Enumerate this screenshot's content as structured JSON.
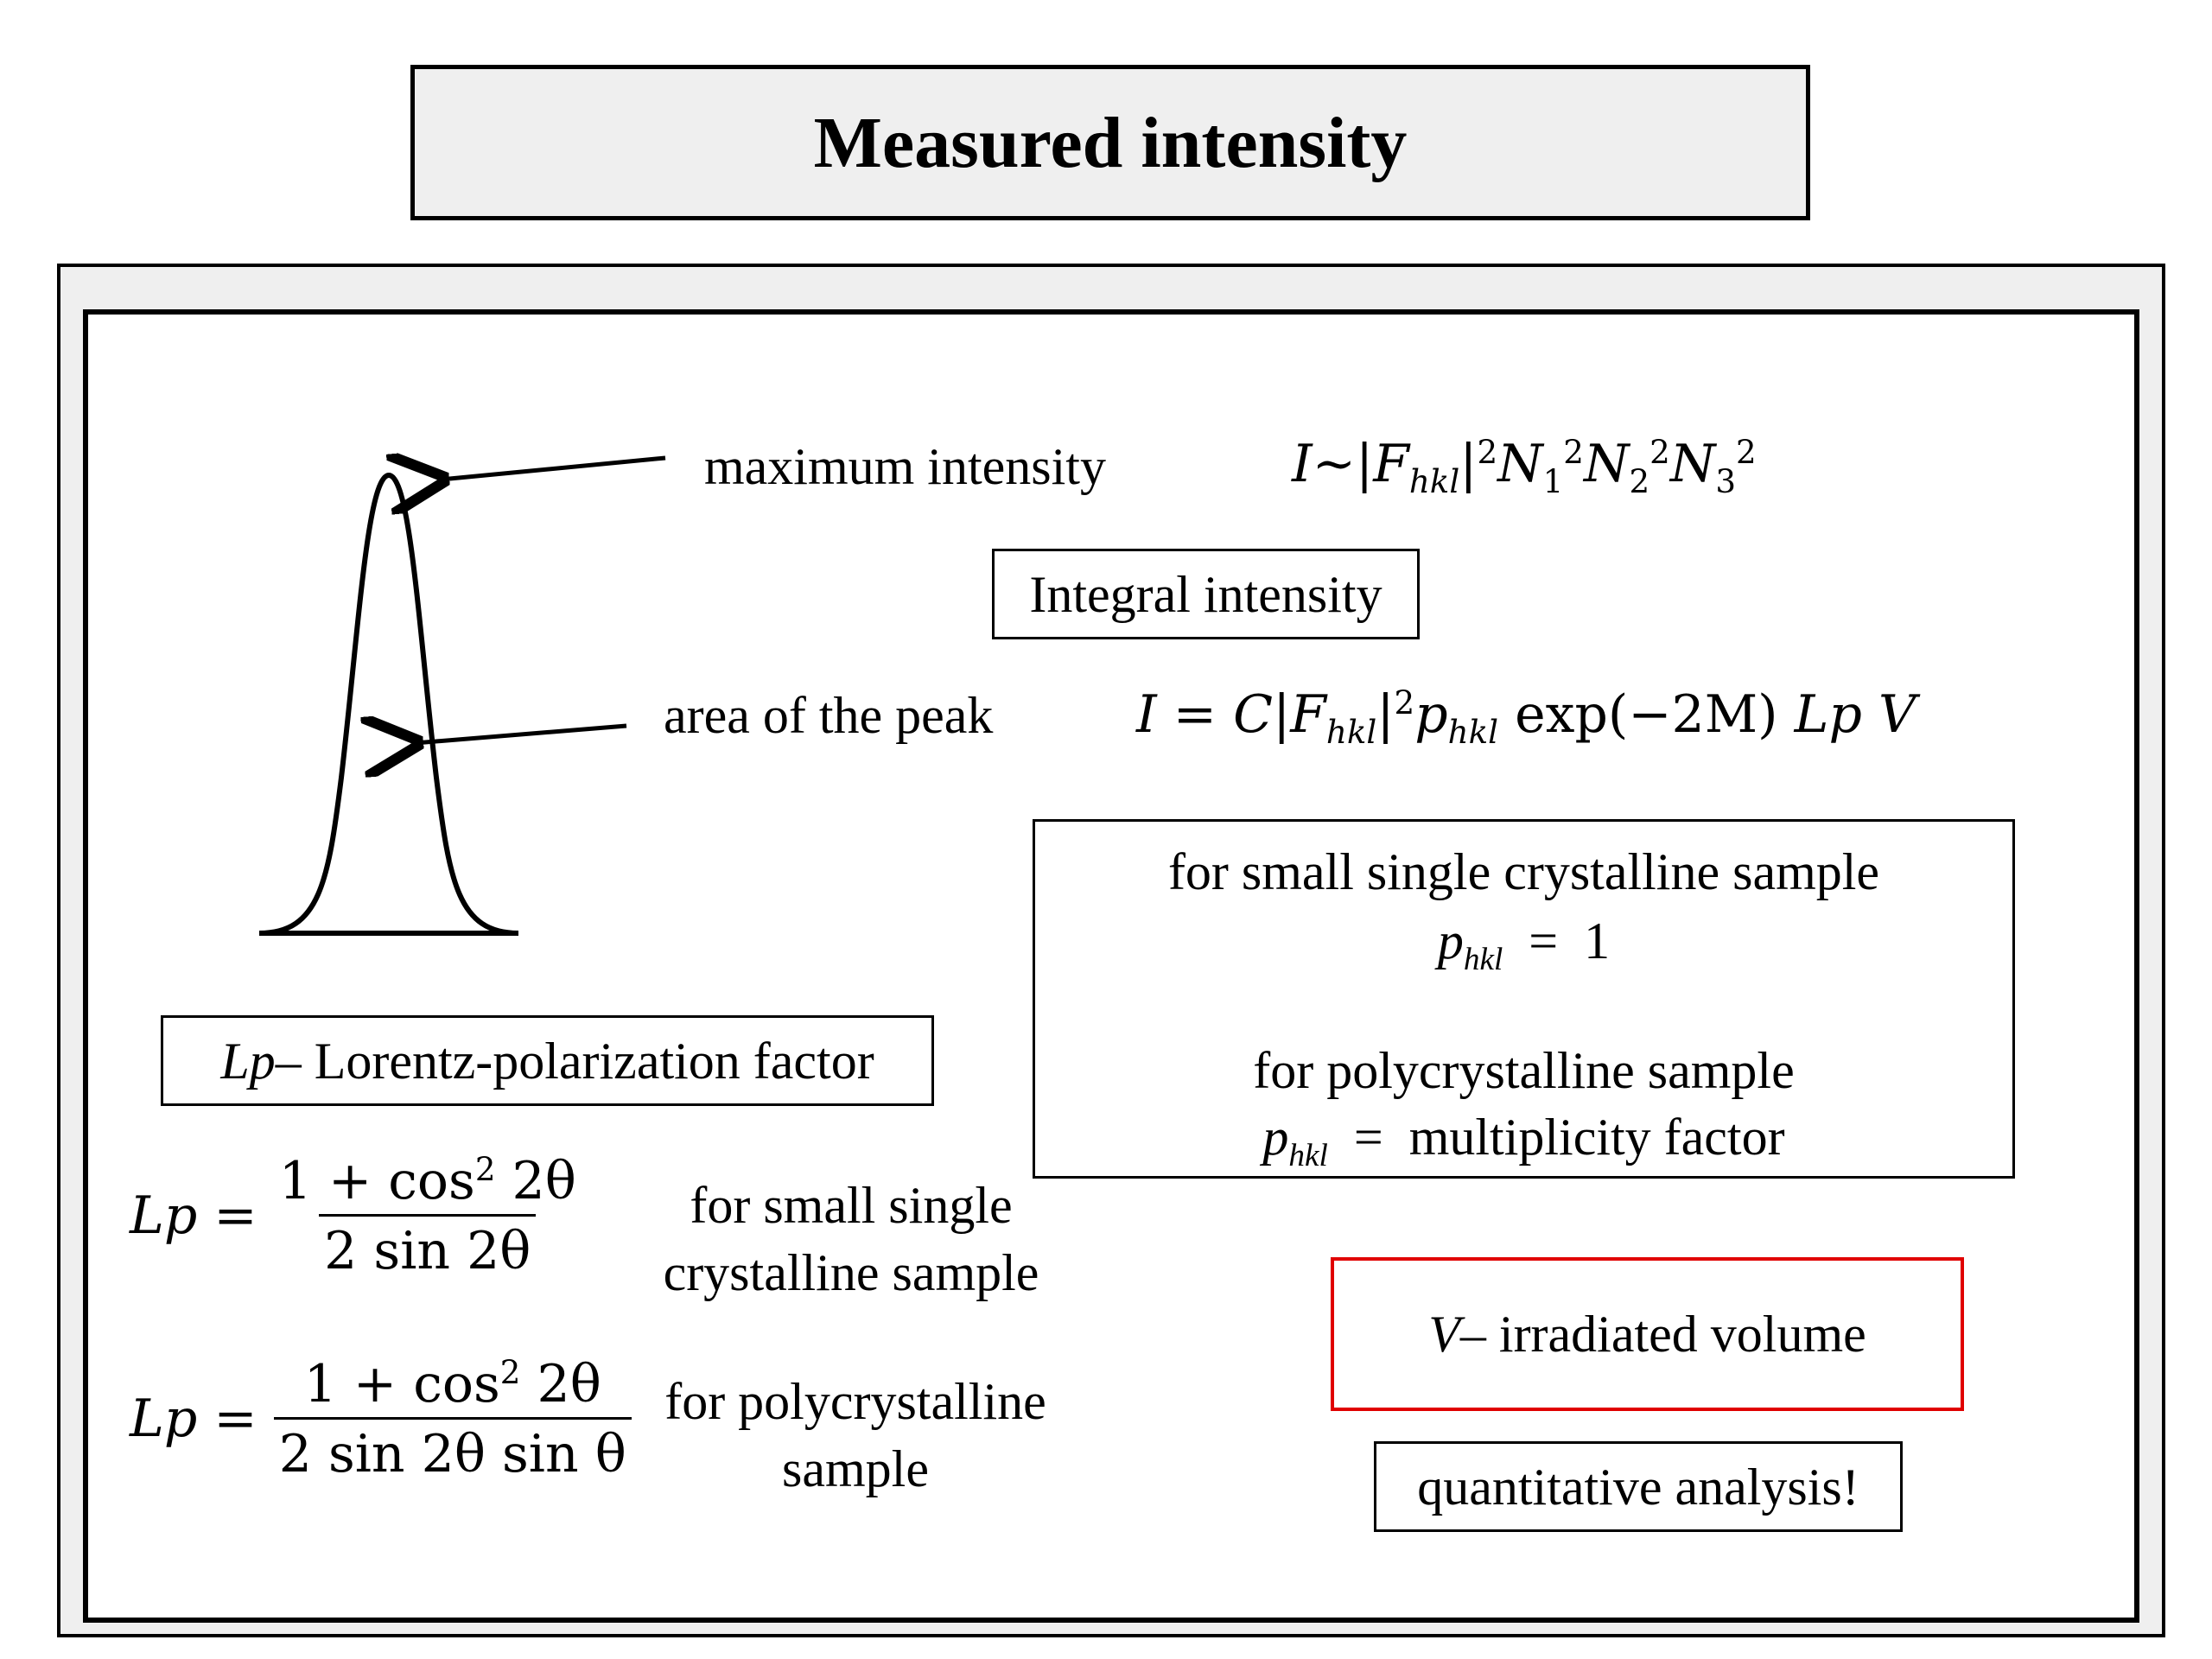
{
  "title": "Measured intensity",
  "peak_labels": {
    "maximum": "maximum intensity",
    "area": "area of the peak"
  },
  "max_formula": {
    "I": "I",
    "rel": "~",
    "F": "F",
    "F_sub": "hkl",
    "exp2": "2",
    "N": "N",
    "n1": "1",
    "n2": "2",
    "n3": "3"
  },
  "integral_label": "Integral intensity",
  "integral_formula": {
    "lhs": "I",
    "eq": "=",
    "C": "C",
    "F": "F",
    "F_sub": "hkl",
    "exp2": "2",
    "p": "p",
    "p_sub": "hkl",
    "exp_term": "exp(−2M)",
    "lp": "Lp",
    "v": "V"
  },
  "p_box": {
    "single_label": "for small single crystalline sample",
    "single_p": "p",
    "single_sub": "hkl",
    "single_eq": "=",
    "single_val": "1",
    "poly_label": "for polycrystalline sample",
    "poly_p": "p",
    "poly_sub": "hkl",
    "poly_eq": "=",
    "poly_val": "multiplicity factor"
  },
  "lp_box": {
    "sym": "Lp",
    "rest": " – Lorentz-polarization factor"
  },
  "lp_single": {
    "lhs": "Lp",
    "eq": "=",
    "num_a": "1 + cos",
    "num_exp": "2",
    "num_b": " 2θ",
    "den": "2 sin 2θ",
    "desc_line1": "for small single",
    "desc_line2": "crystalline sample"
  },
  "lp_poly": {
    "lhs": "Lp",
    "eq": "=",
    "num_a": "1 + cos",
    "num_exp": "2",
    "num_b": " 2θ",
    "den": "2 sin 2θ sin θ",
    "desc_line1": "for polycrystalline",
    "desc_line2": "sample"
  },
  "v_box": {
    "sym": "V",
    "rest": " – irradiated volume",
    "border_color": "#e00000"
  },
  "quant_label": "quantitative analysis!"
}
